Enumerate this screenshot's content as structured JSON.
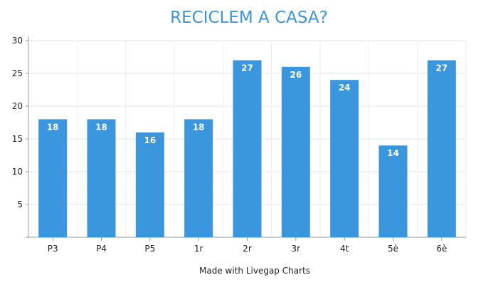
{
  "chart_data": {
    "type": "bar",
    "title": "RECICLEM A CASA?",
    "categories": [
      "P3",
      "P4",
      "P5",
      "1r",
      "2r",
      "3r",
      "4t",
      "5è",
      "6è"
    ],
    "values": [
      18,
      18,
      16,
      18,
      27,
      26,
      24,
      14,
      27
    ],
    "ylim": [
      0,
      30
    ],
    "yticks": [
      5,
      10,
      15,
      20,
      25,
      30
    ],
    "grid": true,
    "bar_color": "#3a96dd",
    "data_labels": true
  },
  "footer": {
    "credit": "Made with Livegap Charts"
  }
}
